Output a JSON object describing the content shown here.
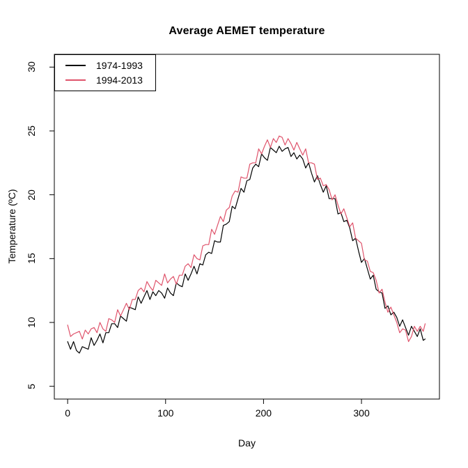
{
  "title": "Average AEMET temperature",
  "axes": {
    "x_label": "Day",
    "y_label": "Temperature (ºC)"
  },
  "legend": {
    "position": "topleft",
    "items": [
      {
        "label": "1974-1993",
        "color": "#000000"
      },
      {
        "label": "1994-2013",
        "color": "#DF536B"
      }
    ]
  },
  "chart_data": {
    "type": "line",
    "title": "Average AEMET temperature",
    "xlabel": "Day",
    "ylabel": "Temperature (ºC)",
    "x_ticks": [
      0,
      100,
      200,
      300
    ],
    "y_ticks": [
      5,
      10,
      15,
      20,
      25,
      30
    ],
    "xlim": [
      -13.6,
      379.6
    ],
    "ylim": [
      4,
      31
    ],
    "grid": false,
    "legend_position": "topleft",
    "x": [
      0,
      3,
      6,
      9,
      12,
      15,
      18,
      21,
      24,
      27,
      30,
      33,
      36,
      39,
      42,
      45,
      48,
      51,
      54,
      57,
      60,
      63,
      66,
      69,
      72,
      75,
      78,
      81,
      84,
      87,
      90,
      93,
      96,
      99,
      102,
      105,
      108,
      111,
      114,
      117,
      120,
      123,
      126,
      129,
      132,
      135,
      138,
      141,
      144,
      147,
      150,
      153,
      156,
      159,
      162,
      165,
      168,
      171,
      174,
      177,
      180,
      183,
      186,
      189,
      192,
      195,
      198,
      201,
      204,
      207,
      210,
      213,
      216,
      219,
      222,
      225,
      228,
      231,
      234,
      237,
      240,
      243,
      246,
      249,
      252,
      255,
      258,
      261,
      264,
      267,
      270,
      273,
      276,
      279,
      282,
      285,
      288,
      291,
      294,
      297,
      300,
      303,
      306,
      309,
      312,
      315,
      318,
      321,
      324,
      327,
      330,
      333,
      336,
      339,
      342,
      345,
      348,
      351,
      354,
      357,
      360,
      363,
      365
    ],
    "series": [
      {
        "name": "1974-1993",
        "color": "#000000",
        "values": [
          8.5,
          7.9,
          8.5,
          7.8,
          7.6,
          8.1,
          8.0,
          7.9,
          8.8,
          8.2,
          8.6,
          9.1,
          8.4,
          9.2,
          9.2,
          9.9,
          9.9,
          9.6,
          10.5,
          10.3,
          10.1,
          11.2,
          11.1,
          11.0,
          12.0,
          11.5,
          12.0,
          12.5,
          11.8,
          12.4,
          12.1,
          12.5,
          12.3,
          11.9,
          12.7,
          12.3,
          12.1,
          13.1,
          12.9,
          12.8,
          13.8,
          13.3,
          13.8,
          14.4,
          13.8,
          14.6,
          14.5,
          15.3,
          15.5,
          15.4,
          16.4,
          16.3,
          16.3,
          17.6,
          17.7,
          17.9,
          19.1,
          18.9,
          19.7,
          20.5,
          20.2,
          21.1,
          21.2,
          22.1,
          22.4,
          22.2,
          23.2,
          22.9,
          22.7,
          23.7,
          23.5,
          23.3,
          23.8,
          23.4,
          23.6,
          23.7,
          23.0,
          23.3,
          22.8,
          23.1,
          22.8,
          22.1,
          22.5,
          21.7,
          21.0,
          21.5,
          20.8,
          20.2,
          20.7,
          19.7,
          19.7,
          19.7,
          18.5,
          18.6,
          17.9,
          18.0,
          17.4,
          16.4,
          16.6,
          15.6,
          14.7,
          15.0,
          14.2,
          13.4,
          13.7,
          12.6,
          12.4,
          12.3,
          11.1,
          11.3,
          10.6,
          10.8,
          10.4,
          9.7,
          10.2,
          9.6,
          9.0,
          9.7,
          9.3,
          8.9,
          9.5,
          8.6,
          8.7
        ]
      },
      {
        "name": "1994-2013",
        "color": "#DF536B",
        "values": [
          9.8,
          8.9,
          9.1,
          9.2,
          9.3,
          8.7,
          9.4,
          9.1,
          9.5,
          9.6,
          9.2,
          10.0,
          9.5,
          9.3,
          10.3,
          10.2,
          10.0,
          11.0,
          10.5,
          11.0,
          11.5,
          11.0,
          11.8,
          11.8,
          12.5,
          12.7,
          12.4,
          13.2,
          12.8,
          12.5,
          13.3,
          13.1,
          12.9,
          13.8,
          13.1,
          13.4,
          13.6,
          13.0,
          13.7,
          13.7,
          14.4,
          14.6,
          14.3,
          15.3,
          15.0,
          14.9,
          16.0,
          16.1,
          16.1,
          17.3,
          16.9,
          17.6,
          18.3,
          17.9,
          18.8,
          19.0,
          19.9,
          20.3,
          20.2,
          21.4,
          21.3,
          21.3,
          22.4,
          22.5,
          22.5,
          23.6,
          23.2,
          23.8,
          24.3,
          23.7,
          24.4,
          24.1,
          24.6,
          24.5,
          23.9,
          24.4,
          24.0,
          23.5,
          24.1,
          23.6,
          23.1,
          23.6,
          22.5,
          22.5,
          22.4,
          21.2,
          21.3,
          20.7,
          20.8,
          20.4,
          19.6,
          20.0,
          19.2,
          18.5,
          18.9,
          18.2,
          17.5,
          17.8,
          16.6,
          16.4,
          16.2,
          14.9,
          14.8,
          14.0,
          13.9,
          13.3,
          12.3,
          12.6,
          11.6,
          10.8,
          11.2,
          10.6,
          10.0,
          9.2,
          9.5,
          9.4,
          8.5,
          8.9,
          9.7,
          9.3,
          9.7,
          9.3,
          9.9
        ]
      }
    ]
  }
}
